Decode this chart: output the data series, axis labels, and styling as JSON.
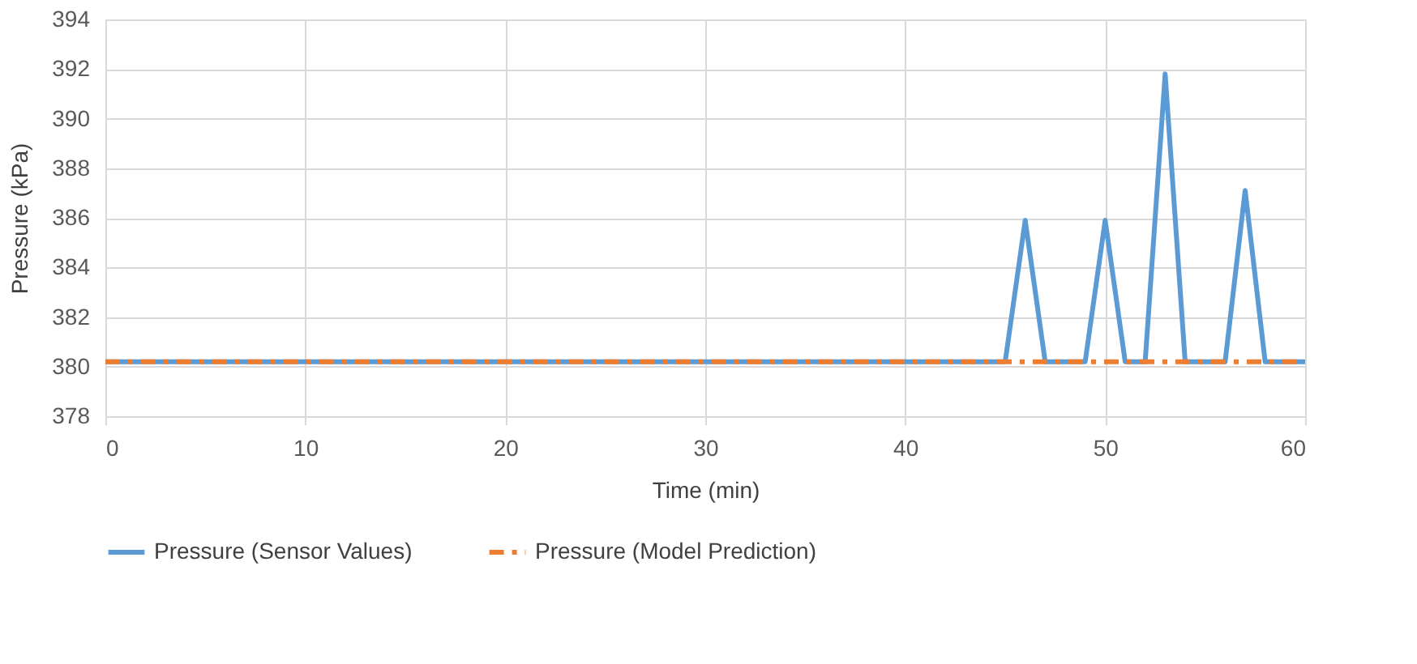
{
  "chart_data": {
    "type": "line",
    "xlabel": "Time (min)",
    "ylabel": "Pressure (kPa)",
    "xlim": [
      0,
      60
    ],
    "xticks": [
      0,
      10,
      20,
      30,
      40,
      50,
      60
    ],
    "ylim": [
      378,
      394
    ],
    "yticks": [
      378,
      380,
      382,
      384,
      386,
      388,
      390,
      392,
      394
    ],
    "grid": true,
    "legend": "bottom",
    "marker": "none",
    "series": [
      {
        "name": "Pressure (Sensor Values)",
        "color": "#5b9bd5",
        "line_style": "solid",
        "x": [
          0,
          45,
          46,
          47,
          49,
          50,
          51,
          52,
          53,
          54,
          56,
          57,
          58,
          60
        ],
        "values": [
          380.2,
          380.2,
          385.9,
          380.2,
          380.2,
          385.9,
          380.2,
          380.2,
          391.8,
          380.2,
          380.2,
          387.1,
          380.2,
          380.2
        ]
      },
      {
        "name": "Pressure (Model Prediction)",
        "color": "#ed7d31",
        "line_style": "dashed",
        "x": [
          0,
          60
        ],
        "values": [
          380.2,
          380.2
        ]
      }
    ]
  }
}
